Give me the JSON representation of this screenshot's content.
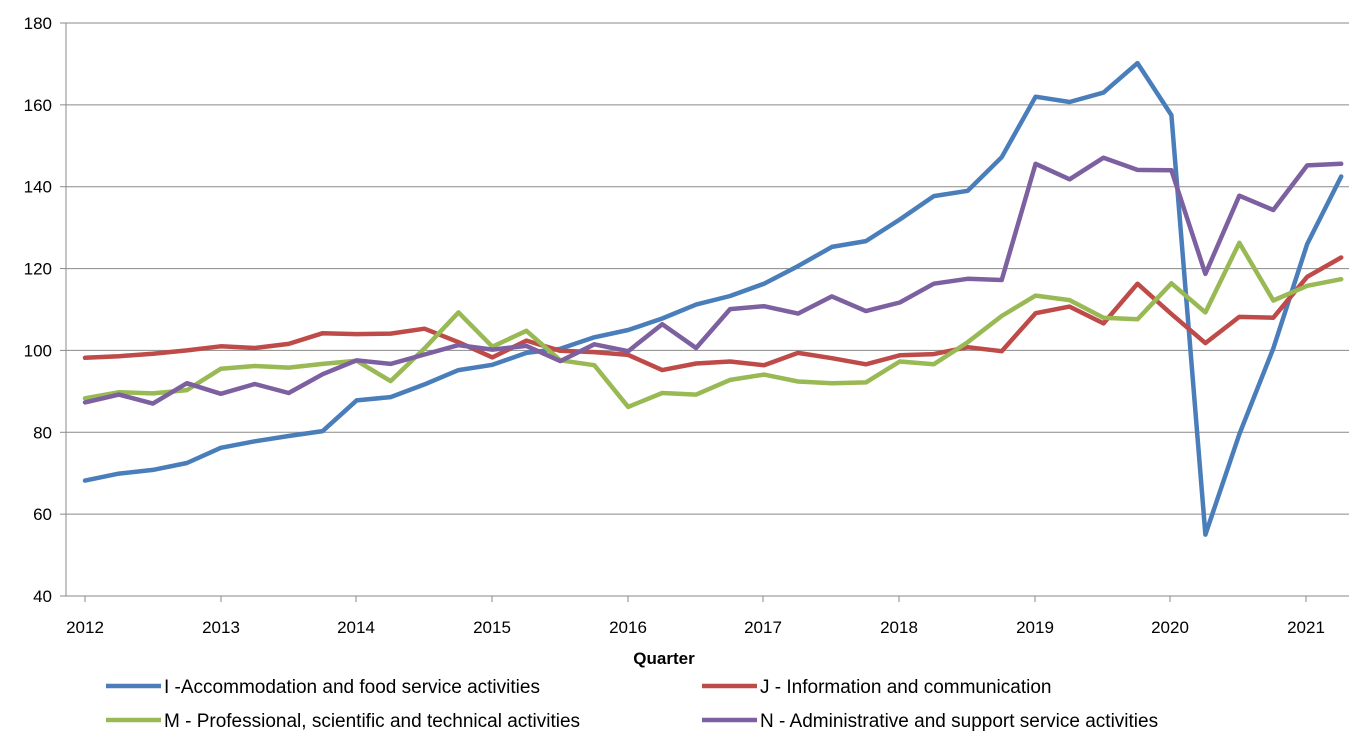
{
  "chart_data": {
    "type": "line",
    "title": "",
    "xlabel": "Quarter",
    "ylabel": "",
    "ylim": [
      40,
      180
    ],
    "yticks": [
      "40",
      "60",
      "80",
      "100",
      "120",
      "140",
      "160",
      "180"
    ],
    "x_tick_labels": [
      "2012",
      "2013",
      "2014",
      "2015",
      "2016",
      "2017",
      "2018",
      "2019",
      "2020",
      "2021"
    ],
    "grid": "horizontal",
    "legend_position": "bottom",
    "x": [
      "2012 Q1",
      "2012 Q2",
      "2012 Q3",
      "2012 Q4",
      "2013 Q1",
      "2013 Q2",
      "2013 Q3",
      "2013 Q4",
      "2014 Q1",
      "2014 Q2",
      "2014 Q3",
      "2014 Q4",
      "2015 Q1",
      "2015 Q2",
      "2015 Q3",
      "2015 Q4",
      "2016 Q1",
      "2016 Q2",
      "2016 Q3",
      "2016 Q4",
      "2017 Q1",
      "2017 Q2",
      "2017 Q3",
      "2017 Q4",
      "2018 Q1",
      "2018 Q2",
      "2018 Q3",
      "2018 Q4",
      "2019 Q1",
      "2019 Q2",
      "2019 Q3",
      "2019 Q4",
      "2020 Q1",
      "2020 Q2",
      "2020 Q3",
      "2020 Q4",
      "2021 Q1",
      "2021 Q2"
    ],
    "series": [
      {
        "name": "I -Accommodation and food service activities",
        "color": "#4a7ebb",
        "values": [
          68.2,
          69.9,
          70.8,
          72.5,
          76.2,
          77.8,
          79.1,
          80.3,
          87.8,
          88.6,
          91.7,
          95.2,
          96.5,
          99.4,
          100.4,
          103.2,
          105.0,
          107.8,
          111.2,
          113.3,
          116.3,
          120.6,
          125.3,
          126.7,
          132.0,
          137.7,
          139.0,
          147.2,
          162.0,
          160.7,
          163.0,
          170.2,
          157.5,
          55.0,
          79.5,
          100.5,
          126.0,
          142.5
        ]
      },
      {
        "name": "J - Information and communication",
        "color": "#be4b48",
        "values": [
          98.2,
          98.6,
          99.2,
          100.0,
          101.0,
          100.6,
          101.6,
          104.2,
          104.0,
          104.1,
          105.3,
          102.0,
          98.3,
          102.4,
          99.9,
          99.6,
          98.9,
          95.2,
          96.8,
          97.3,
          96.4,
          99.4,
          98.1,
          96.6,
          98.8,
          99.1,
          100.8,
          99.8,
          109.1,
          110.7,
          106.6,
          116.3,
          108.9,
          101.8,
          108.2,
          108.0,
          118.0,
          122.7
        ]
      },
      {
        "name": "M - Professional, scientific and technical activities",
        "color": "#98b954",
        "values": [
          88.3,
          89.8,
          89.5,
          90.3,
          95.5,
          96.2,
          95.8,
          96.7,
          97.5,
          92.5,
          100.5,
          109.3,
          100.9,
          104.8,
          97.6,
          96.4,
          86.2,
          89.6,
          89.2,
          92.8,
          94.1,
          92.4,
          92.0,
          92.2,
          97.3,
          96.6,
          102.0,
          108.4,
          113.4,
          112.3,
          108.0,
          107.6,
          116.4,
          109.3,
          126.3,
          112.2,
          115.8,
          117.4
        ]
      },
      {
        "name": "N - Administrative and support service activities",
        "color": "#7d60a0",
        "values": [
          87.3,
          89.2,
          87.0,
          92.0,
          89.4,
          91.8,
          89.6,
          94.2,
          97.6,
          96.7,
          99.0,
          101.3,
          100.2,
          101.1,
          97.4,
          101.5,
          99.8,
          106.4,
          100.6,
          110.1,
          110.8,
          109.0,
          113.2,
          109.6,
          111.7,
          116.3,
          117.5,
          117.2,
          145.6,
          141.8,
          147.1,
          144.1,
          144.0,
          118.7,
          137.8,
          134.3,
          145.2,
          145.6
        ]
      }
    ]
  }
}
